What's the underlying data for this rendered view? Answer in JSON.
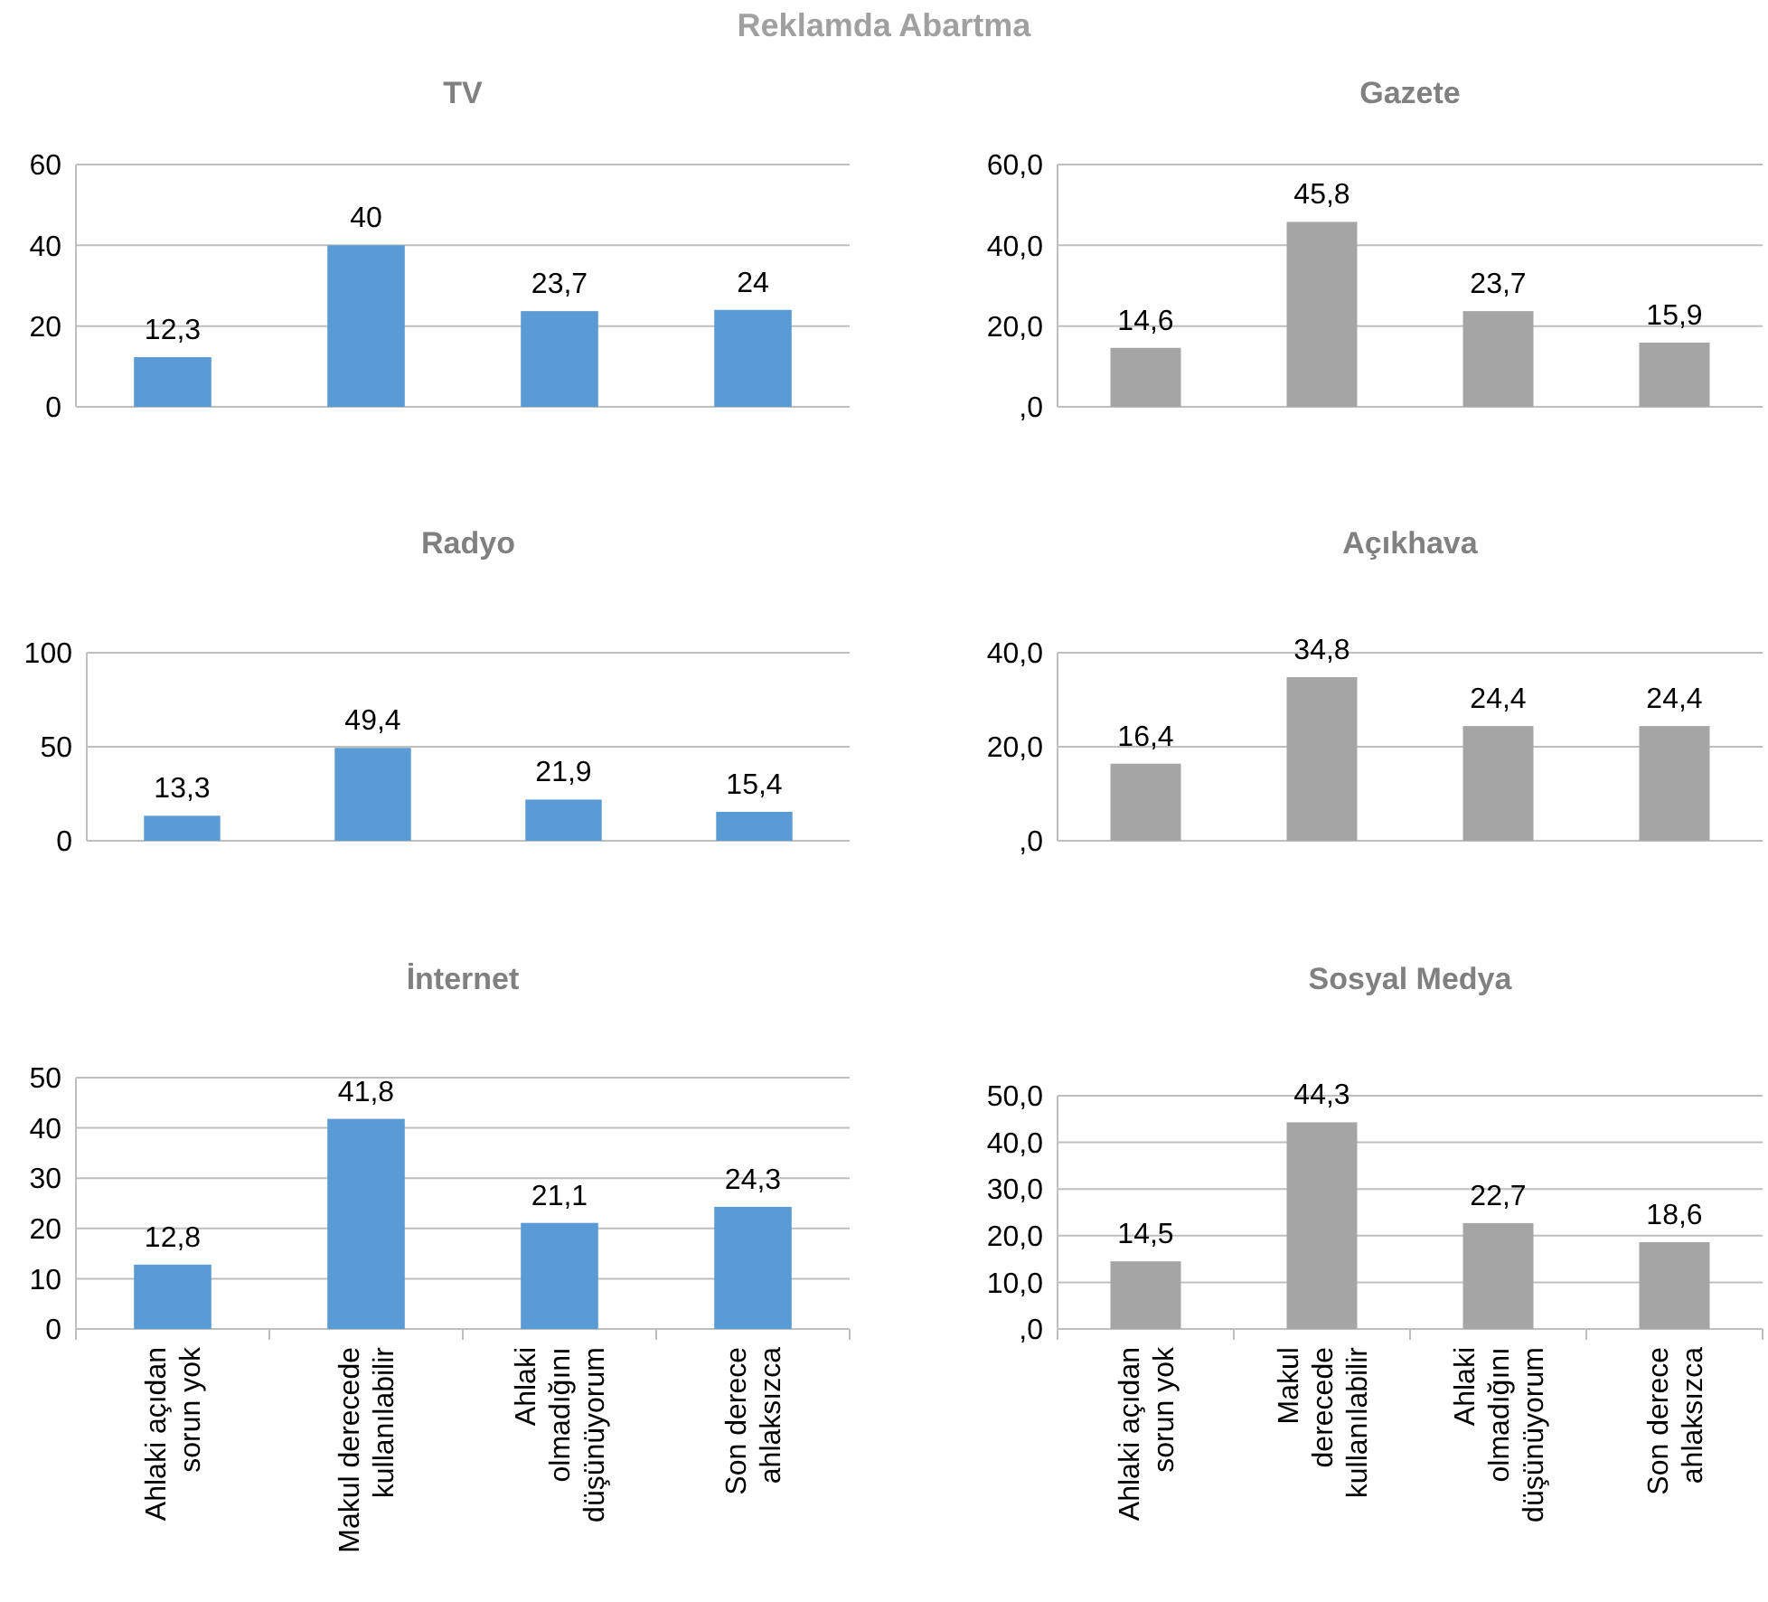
{
  "chart_data": [
    {
      "type": "other",
      "title": "Reklamda Abartma"
    },
    {
      "type": "bar",
      "title": "TV",
      "categories": [
        null,
        null,
        null,
        null
      ],
      "values": [
        12.3,
        40,
        23.7,
        24
      ],
      "value_labels": [
        "12,3",
        "40",
        "23,7",
        "24"
      ],
      "color": "#5b9bd5",
      "ylim": [
        0,
        60
      ],
      "yticks": [
        0,
        20,
        40,
        60
      ],
      "grid": "y",
      "tick_labels": "y"
    },
    {
      "type": "bar",
      "title": "Gazete",
      "categories": [
        null,
        null,
        null,
        null
      ],
      "values": [
        14.6,
        45.8,
        23.7,
        15.9
      ],
      "value_labels": [
        "14,6",
        "45,8",
        "23,7",
        "15,9"
      ],
      "color": "#a5a5a5",
      "ylim": [
        0,
        60
      ],
      "yticks": [
        {
          "value": 0,
          "label": ",0"
        },
        {
          "value": 20,
          "label": "20,0"
        },
        {
          "value": 40,
          "label": "40,0"
        },
        {
          "value": 60,
          "label": "60,0"
        }
      ],
      "grid": "y",
      "tick_labels": "y"
    },
    {
      "type": "bar",
      "title": "Radyo",
      "categories": [
        null,
        null,
        null,
        null
      ],
      "values": [
        13.3,
        49.4,
        21.9,
        15.4
      ],
      "value_labels": [
        "13,3",
        "49,4",
        "21,9",
        "15,4"
      ],
      "color": "#5b9bd5",
      "ylim": [
        0,
        100
      ],
      "yticks": [
        0,
        50,
        100
      ],
      "grid": "y",
      "tick_labels": "y"
    },
    {
      "type": "bar",
      "title": "Açıkhava",
      "categories": [
        null,
        null,
        null,
        null
      ],
      "values": [
        16.4,
        34.8,
        24.4,
        24.4
      ],
      "value_labels": [
        "16,4",
        "34,8",
        "24,4",
        "24,4"
      ],
      "color": "#a5a5a5",
      "ylim": [
        0,
        40
      ],
      "yticks": [
        {
          "value": 0,
          "label": ",0"
        },
        {
          "value": 20,
          "label": "20,0"
        },
        {
          "value": 40,
          "label": "40,0"
        }
      ],
      "grid": "y",
      "tick_labels": "y"
    },
    {
      "type": "bar",
      "title": "İnternet",
      "categories": [
        "Ahlaki açıdan sorun yok",
        "Makul derecede kullanılabilir",
        "Ahlaki olmadığını düşünüyorum",
        "Son derece ahlaksızca"
      ],
      "values": [
        12.8,
        41.8,
        21.1,
        24.3
      ],
      "value_labels": [
        "12,8",
        "41,8",
        "21,1",
        "24,3"
      ],
      "color": "#5b9bd5",
      "ylim": [
        0,
        50
      ],
      "yticks": [
        0,
        10,
        20,
        30,
        40,
        50
      ],
      "grid": "y"
    },
    {
      "type": "bar",
      "title": "Sosyal Medya",
      "categories": [
        "Ahlaki açıdan sorun yok",
        "Makul derecede kullanılabilir",
        "Ahlaki olmadığını düşünüyorum",
        "Son derece ahlaksızca"
      ],
      "values": [
        14.5,
        44.3,
        22.7,
        18.6
      ],
      "value_labels": [
        "14,5",
        "44,3",
        "22,7",
        "18,6"
      ],
      "color": "#a5a5a5",
      "ylim": [
        0,
        50
      ],
      "yticks": [
        {
          "value": 0,
          "label": ",0"
        },
        {
          "value": 10,
          "label": "10,0"
        },
        {
          "value": 20,
          "label": "20,0"
        },
        {
          "value": 30,
          "label": "30,0"
        },
        {
          "value": 40,
          "label": "40,0"
        },
        {
          "value": 50,
          "label": "50,0"
        }
      ],
      "grid": "y"
    }
  ]
}
